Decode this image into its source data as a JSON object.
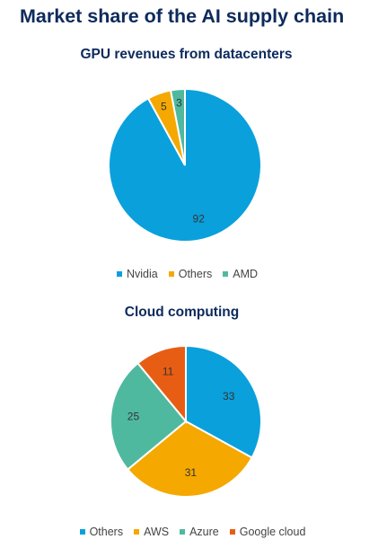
{
  "page_title": "Market share of the AI supply chain",
  "chart_data": [
    {
      "type": "pie",
      "title": "GPU revenues from datacenters",
      "categories": [
        "Nvidia",
        "Others",
        "AMD"
      ],
      "values": [
        92,
        5,
        3
      ],
      "colors": [
        "#0aa0dc",
        "#f5a800",
        "#4fb9a0"
      ],
      "start_angle_deg": 0,
      "legend": "bottom"
    },
    {
      "type": "pie",
      "title": "Cloud computing",
      "categories": [
        "Others",
        "AWS",
        "Azure",
        "Google cloud"
      ],
      "values": [
        33,
        31,
        25,
        11
      ],
      "colors": [
        "#0aa0dc",
        "#f5a800",
        "#4fb9a0",
        "#e85d14"
      ],
      "start_angle_deg": 0,
      "legend": "bottom"
    }
  ]
}
